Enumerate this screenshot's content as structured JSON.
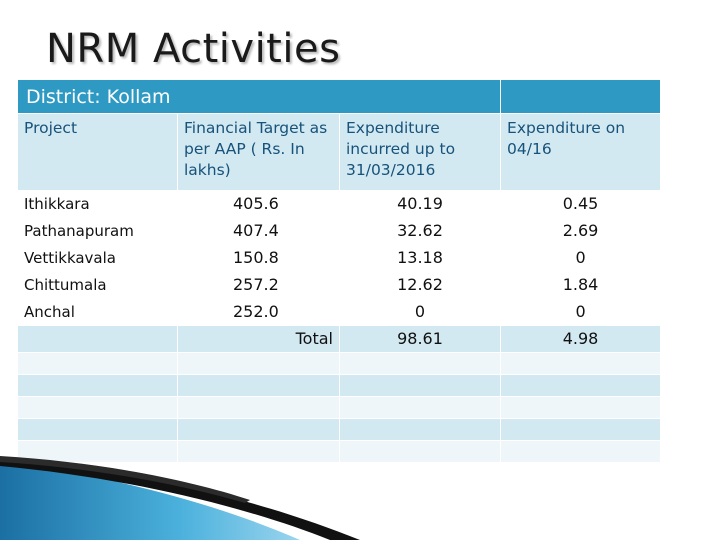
{
  "title": "NRM Activities",
  "district_label": "District: Kollam",
  "columns": [
    "Project",
    "Financial Target as per AAP ( Rs. In lakhs)",
    "Expenditure incurred up to 31/03/2016",
    "Expenditure on 04/16"
  ],
  "rows": [
    {
      "project": "Ithikkara",
      "target": "405.6",
      "exp_upto": "40.19",
      "exp_on": "0.45"
    },
    {
      "project": "Pathanapuram",
      "target": "407.4",
      "exp_upto": "32.62",
      "exp_on": "2.69"
    },
    {
      "project": "Vettikkavala",
      "target": "150.8",
      "exp_upto": "13.18",
      "exp_on": "0"
    },
    {
      "project": "Chittumala",
      "target": "257.2",
      "exp_upto": "12.62",
      "exp_on": "1.84"
    },
    {
      "project": "Anchal",
      "target": "252.0",
      "exp_upto": "0",
      "exp_on": "0"
    }
  ],
  "total": {
    "label": "Total",
    "exp_upto": "98.61",
    "exp_on": "4.98"
  }
}
